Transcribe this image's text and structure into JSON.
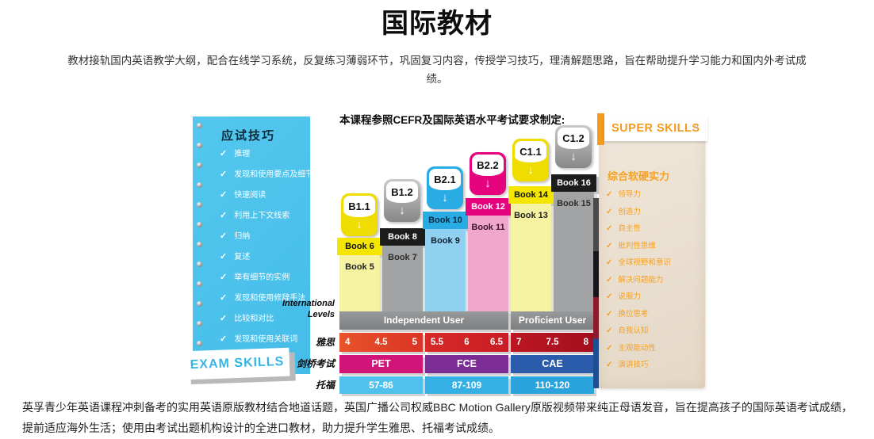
{
  "page": {
    "title": "国际教材",
    "intro": "教材接轨国内英语教学大纲，配合在线学习系统，反复练习薄弱环节，巩固复习内容，传授学习技巧，理清解题思路，旨在帮助提升学习能力和国内外考试成绩。",
    "footer": "英孚青少年英语课程冲刺备考的实用英语原版教材结合地道话题，英国广播公司权威BBC Motion Gallery原版视频带来纯正母语发音，旨在提高孩子的国际英语考试成绩，提前适应海外生活；使用由考试出题机构设计的全进口教材，助力提升学生雅思、托福考试成绩。"
  },
  "exam_skills": {
    "heading": "应试技巧",
    "check_glyph": "✓",
    "items": [
      "推理",
      "发现和使用要点及细节",
      "快速阅读",
      "利用上下文线索",
      "归纳",
      "复述",
      "举有细节的实例",
      "发现和使用修辞手法",
      "比较和对比",
      "发现和使用关联词"
    ],
    "banner": "EXAM SKILLS",
    "panel_color": "#45BDE9"
  },
  "chart": {
    "title": "本课程参照CEFR及国际英语水平考试要求制定:",
    "arrow_glyph": "↓",
    "columns": [
      {
        "level": "B1.1",
        "top_book": "Book 6",
        "bottom_book": "Book 5",
        "color": "#F4E600"
      },
      {
        "level": "B1.2",
        "top_book": "Book 8",
        "bottom_book": "Book 7",
        "color": "#A2A3A5"
      },
      {
        "level": "B2.1",
        "top_book": "Book 10",
        "bottom_book": "Book 9",
        "color": "#29ABE3"
      },
      {
        "level": "B2.2",
        "top_book": "Book 12",
        "bottom_book": "Book 11",
        "color": "#E5047E"
      },
      {
        "level": "C1.1",
        "top_book": "Book 14",
        "bottom_book": "Book 13",
        "color": "#F4E600"
      },
      {
        "level": "C1.2",
        "top_book": "Book 16",
        "bottom_book": "Book 15",
        "color": "#A2A3A5"
      }
    ],
    "intl": {
      "line1": "International",
      "line2": "Levels"
    },
    "bands": [
      {
        "label": "Independent User",
        "columns_spanned": 4
      },
      {
        "label": "Proficient User",
        "columns_spanned": 2
      }
    ],
    "ielts": {
      "label": "雅思",
      "segments": [
        [
          "4",
          "4.5",
          "5"
        ],
        [
          "5.5",
          "6",
          "6.5"
        ],
        [
          "7",
          "7.5",
          "8"
        ]
      ],
      "colors": [
        "#E8542B",
        "#D62A28",
        "#B01420"
      ]
    },
    "cambridge": {
      "label": "剑桥考试",
      "values": [
        "PET",
        "FCE",
        "CAE"
      ],
      "colors": [
        "#D01478",
        "#7C2C95",
        "#2B5CAB"
      ]
    },
    "toefl": {
      "label": "托福",
      "values": [
        "57-86",
        "87-109",
        "110-120"
      ],
      "colors": [
        "#4FC1EC",
        "#36B0E4",
        "#2BA3DC"
      ]
    }
  },
  "super_skills": {
    "banner": "SUPER SKILLS",
    "heading": "综合软硬实力",
    "check_glyph": "✓",
    "items": [
      "领导力",
      "创造力",
      "自主性",
      "批判性思维",
      "全球视野和意识",
      "解决问题能力",
      "说服力",
      "换位思考",
      "自我认知",
      "主观能动性",
      "演讲技巧"
    ],
    "accent_color": "#F6A021"
  }
}
